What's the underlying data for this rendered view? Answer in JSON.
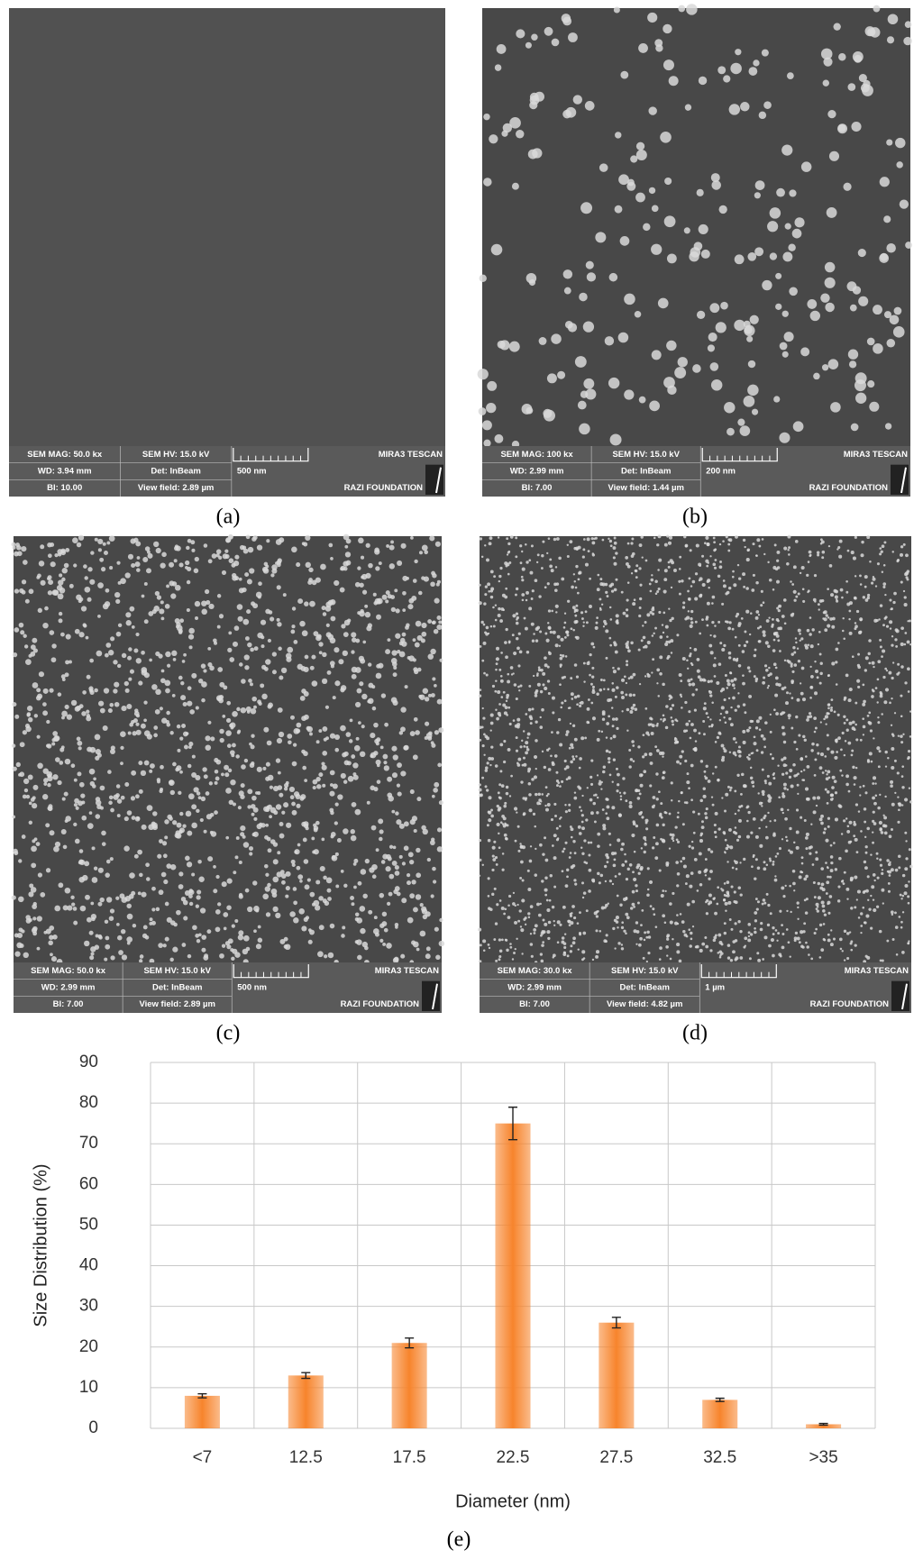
{
  "panels": [
    {
      "label": "(a)",
      "mag": "SEM MAG: 50.0 kx",
      "hv": "SEM HV: 15.0 kV",
      "brand": "MIRA3 TESCAN",
      "wd": "WD: 3.94 mm",
      "det": "Det: InBeam",
      "scale": "500 nm",
      "bi": "BI: 10.00",
      "field": "View field: 2.89 µm",
      "foundation": "RAZI FOUNDATION"
    },
    {
      "label": "(b)",
      "mag": "SEM MAG: 100 kx",
      "hv": "SEM HV: 15.0 kV",
      "brand": "MIRA3 TESCAN",
      "wd": "WD: 2.99 mm",
      "det": "Det: InBeam",
      "scale": "200 nm",
      "bi": "BI: 7.00",
      "field": "View field: 1.44 µm",
      "foundation": "RAZI FOUNDATION"
    },
    {
      "label": "(c)",
      "mag": "SEM MAG: 50.0 kx",
      "hv": "SEM HV: 15.0 kV",
      "brand": "MIRA3 TESCAN",
      "wd": "WD: 2.99 mm",
      "det": "Det: InBeam",
      "scale": "500 nm",
      "bi": "BI: 7.00",
      "field": "View field: 2.89 µm",
      "foundation": "RAZI FOUNDATION"
    },
    {
      "label": "(d)",
      "mag": "SEM MAG: 30.0 kx",
      "hv": "SEM HV: 15.0 kV",
      "brand": "MIRA3 TESCAN",
      "wd": "WD: 2.99 mm",
      "det": "Det: InBeam",
      "scale": "1 µm",
      "bi": "BI: 7.00",
      "field": "View field: 4.82 µm",
      "foundation": "RAZI FOUNDATION"
    }
  ],
  "chart_data": {
    "type": "bar",
    "caption": "(e)",
    "x_label": "Diameter (nm)",
    "y_label": "Size Distribution (%)",
    "categories": [
      "<7",
      "12.5",
      "17.5",
      "22.5",
      "27.5",
      "32.5",
      ">35"
    ],
    "values": [
      8,
      13,
      21,
      75,
      26,
      7,
      1
    ],
    "errors": [
      0.5,
      0.7,
      1.2,
      4,
      1.3,
      0.4,
      0.2
    ],
    "color": "#f7842c",
    "ylim": [
      0,
      90
    ],
    "yticks": [
      0,
      10,
      20,
      30,
      40,
      50,
      60,
      70,
      80,
      90
    ],
    "grid": true
  }
}
